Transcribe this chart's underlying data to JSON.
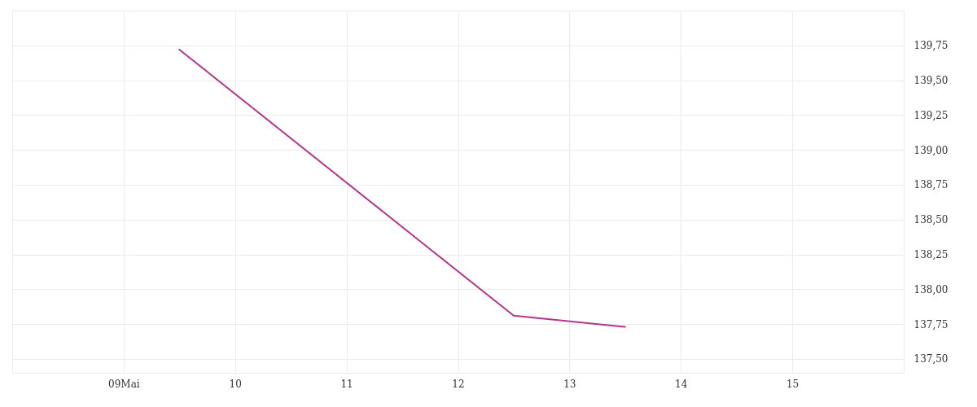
{
  "chart_data": {
    "type": "line",
    "x": [
      9.5,
      12.5,
      13.5
    ],
    "series": [
      {
        "color": "#b5338a",
        "values": [
          139.72,
          137.81,
          137.73
        ]
      }
    ],
    "xlim": [
      8,
      16
    ],
    "xticks": [
      {
        "value": 9,
        "label": "09Mai"
      },
      10,
      11,
      12,
      13,
      14,
      15
    ],
    "ylim": [
      137.4,
      140.0
    ],
    "yticks": [
      {
        "value": 137.5,
        "label": "137,50"
      },
      {
        "value": 137.75,
        "label": "137,75"
      },
      {
        "value": 138,
        "label": "138,00"
      },
      {
        "value": 138.25,
        "label": "138,25"
      },
      {
        "value": 138.5,
        "label": "138,50"
      },
      {
        "value": 138.75,
        "label": "138,75"
      },
      {
        "value": 139,
        "label": "139,00"
      },
      {
        "value": 139.25,
        "label": "139,25"
      },
      {
        "value": 139.5,
        "label": "139,50"
      },
      {
        "value": 139.75,
        "label": "139,75"
      },
      {
        "value": 140,
        "label": null
      }
    ],
    "grid": true,
    "line_style": "solid",
    "marker": "none"
  }
}
